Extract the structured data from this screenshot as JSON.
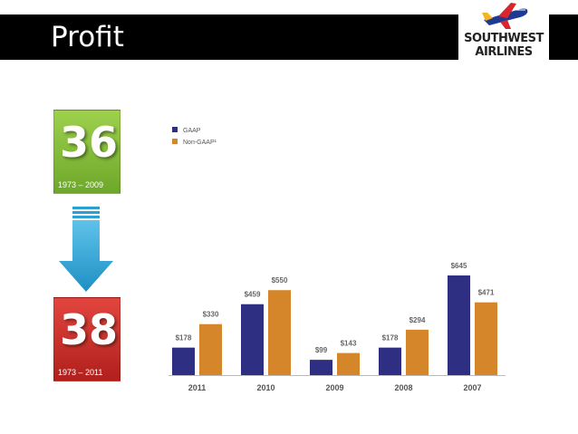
{
  "header": {
    "title": "Profit"
  },
  "logo": {
    "line1": "SOUTHWEST",
    "line2": "AIRLINES"
  },
  "stats": {
    "before": {
      "value": "36",
      "range": "1973 – 2009"
    },
    "after": {
      "value": "38",
      "range": "1973 – 2011"
    }
  },
  "colors": {
    "gaap": "#2e2f82",
    "non_gaap": "#d5862a",
    "stat_green": "#8cc43f",
    "stat_red": "#cc2f2a",
    "arrow": "#2aa0d4"
  },
  "chart_data": {
    "type": "bar",
    "categories": [
      "2011",
      "2010",
      "2009",
      "2008",
      "2007"
    ],
    "series": [
      {
        "name": "GAAP",
        "values": [
          178,
          459,
          99,
          178,
          645
        ],
        "labels": [
          "$178",
          "$459",
          "$99",
          "$178",
          "$645"
        ]
      },
      {
        "name": "Non-GAAP¹",
        "values": [
          330,
          550,
          143,
          294,
          471
        ],
        "labels": [
          "$330",
          "$550",
          "$143",
          "$294",
          "$471"
        ]
      }
    ],
    "ylim": [
      0,
      700
    ],
    "legend_position": "top-left",
    "grid": false
  }
}
